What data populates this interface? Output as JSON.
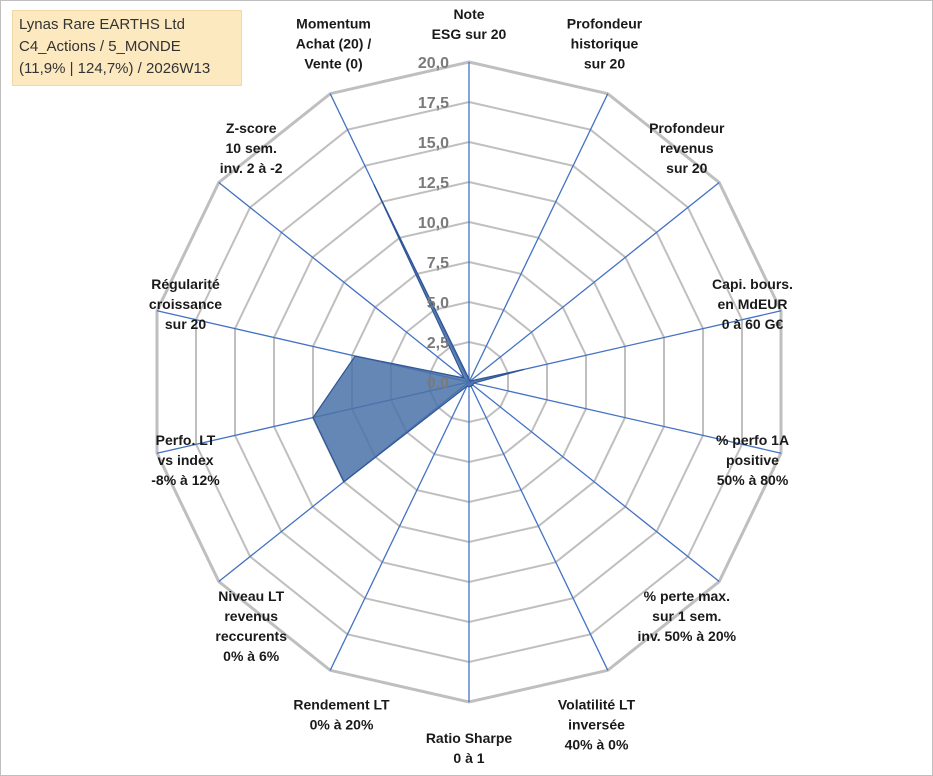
{
  "title": {
    "company": "Lynas Rare EARTHS Ltd",
    "category": "C4_Actions / 5_MONDE",
    "stats": "(11,9% | 124,7%) / 2026W13"
  },
  "colors": {
    "grid": "#bfbfbf",
    "spoke": "#4472c4",
    "fill": "#4a72a8",
    "stroke": "#2f5597",
    "tick": "#7a7a7a",
    "title_bg": "#fde9c0"
  },
  "chart_data": {
    "type": "radar",
    "r_min": 0,
    "r_max": 20,
    "tick_step": 2.5,
    "tick_labels": [
      "0,0",
      "2,5",
      "5,0",
      "7,5",
      "10,0",
      "12,5",
      "15,0",
      "17,5",
      "20,0"
    ],
    "axes": [
      {
        "lines": [
          "Note",
          "ESG sur 20"
        ],
        "value": 0.2
      },
      {
        "lines": [
          "Profondeur",
          "historique",
          "sur 20"
        ],
        "value": 0.1
      },
      {
        "lines": [
          "Profondeur",
          "revenus",
          "sur 20"
        ],
        "value": 0.1
      },
      {
        "lines": [
          "Capi. bours.",
          "en MdEUR",
          "0 à 60 G€"
        ],
        "value": 3.5
      },
      {
        "lines": [
          "% perfo 1A",
          "positive",
          "50% à 80%"
        ],
        "value": 0.3
      },
      {
        "lines": [
          "% perte max.",
          "sur 1 sem.",
          "inv. 50% à 20%"
        ],
        "value": 0.3
      },
      {
        "lines": [
          "Volatilité LT",
          "inversée",
          "40% à 0%"
        ],
        "value": 0.3
      },
      {
        "lines": [
          "Ratio Sharpe",
          "0 à 1"
        ],
        "value": 0.3
      },
      {
        "lines": [
          "Rendement LT",
          "0% à 20%"
        ],
        "value": 0.3
      },
      {
        "lines": [
          "Niveau LT",
          "revenus",
          "reccurents",
          "0% à 6%"
        ],
        "value": 10.0
      },
      {
        "lines": [
          "Perfo. LT",
          "vs index",
          "-8% à 12%"
        ],
        "value": 10.0
      },
      {
        "lines": [
          "Régularité",
          "croissance",
          "sur 20"
        ],
        "value": 7.3
      },
      {
        "lines": [
          "Z-score",
          "10 sem.",
          "inv. 2 à -2"
        ],
        "value": 0.4
      },
      {
        "lines": [
          "Momentum",
          "Achat (20) /",
          "Vente (0)"
        ],
        "value": 13.7
      }
    ]
  }
}
